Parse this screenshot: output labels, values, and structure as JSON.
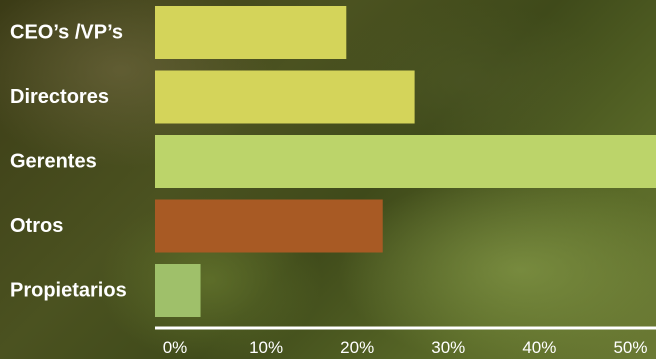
{
  "chart_data": {
    "type": "bar",
    "orientation": "horizontal",
    "categories": [
      "CEO’s /VP’s",
      "Directores",
      "Gerentes",
      "Otros",
      "Propietarios"
    ],
    "values": [
      21,
      28.5,
      55,
      25,
      5
    ],
    "bar_colors": [
      "#d4d45a",
      "#d4d45a",
      "#bcd46a",
      "#a85a24",
      "#9fc06a"
    ],
    "xlim": [
      0,
      55
    ],
    "x_ticks": [
      0,
      10,
      20,
      30,
      40,
      50
    ],
    "x_tick_labels": [
      "0%",
      "10%",
      "20%",
      "30%",
      "40%",
      "50%"
    ],
    "grid": false,
    "legend": "none"
  }
}
